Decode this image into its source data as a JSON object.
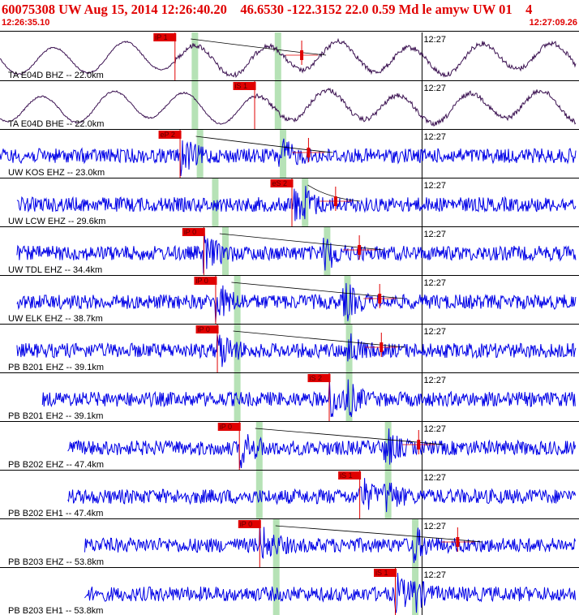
{
  "header": {
    "title": "60075308 UW Aug 15, 2014 12:26:40.20    46.6530 -122.3152 22.0 0.59 Md le amyw UW 01    4",
    "time_start": "12:26:35.10",
    "time_end": "12:27:09.26"
  },
  "colors": {
    "header_red": "#e00000",
    "trace_black": "#3a1050",
    "trace_blue": "#0000e6",
    "pick_red": "#e00000",
    "window_green": "#b6e2b6",
    "tick": "#000000"
  },
  "chart_data": {
    "type": "line",
    "title": "60075308 UW Aug 15, 2014 12:26:40.20",
    "x_range": [
      "12:26:35.10",
      "12:27:09.26"
    ],
    "minute_label": "12:27",
    "minute_mark_time": "12:27:00.00",
    "channels": [
      {
        "label": "TA E04D BHZ -- 22.0km",
        "pick": "iP 1",
        "pick_time": 10.3,
        "green_times": [
          11.5,
          16.4
        ],
        "amp_time": 17.8,
        "color": "dark",
        "start": 0.0,
        "end": 35.0
      },
      {
        "label": "TA E04D BHE -- 22.0km",
        "pick": "iS 1",
        "pick_time": 15.0,
        "green_times": [
          11.5,
          16.4
        ],
        "amp_time": null,
        "color": "dark",
        "start": 0.0,
        "end": 35.0
      },
      {
        "label": "UW KOS EHZ -- 23.0km",
        "pick": "eP 2",
        "pick_time": 10.6,
        "green_times": [
          11.8,
          16.7
        ],
        "amp_time": 18.2,
        "color": "blue",
        "start": 0.0,
        "end": 35.0
      },
      {
        "label": "UW LCW EHZ -- 29.6km",
        "pick": "eS 2",
        "pick_time": 17.2,
        "green_times": [
          12.7,
          18.0
        ],
        "amp_time": 19.8,
        "color": "blue",
        "start": 1.0,
        "end": 36.0
      },
      {
        "label": "UW TDL EHZ -- 34.4km",
        "pick": "iP 0",
        "pick_time": 12.0,
        "green_times": [
          13.3,
          19.3
        ],
        "amp_time": 21.2,
        "color": "blue",
        "start": 1.0,
        "end": 37.0
      },
      {
        "label": "UW ELK EHZ -- 38.7km",
        "pick": "iP 0",
        "pick_time": 12.7,
        "green_times": [
          14.0,
          20.5
        ],
        "amp_time": 22.4,
        "color": "blue",
        "start": 1.0,
        "end": 37.5
      },
      {
        "label": "PB B201 EHZ -- 39.1km",
        "pick": "iP 0",
        "pick_time": 12.8,
        "green_times": [
          14.0,
          20.6
        ],
        "amp_time": 22.5,
        "color": "blue",
        "start": 1.0,
        "end": 37.5
      },
      {
        "label": "PB B201 EH2 -- 39.1km",
        "pick": "iS 2",
        "pick_time": 19.4,
        "green_times": [
          14.0,
          20.6
        ],
        "amp_time": null,
        "color": "blue",
        "start": 2.5,
        "end": 37.5
      },
      {
        "label": "PB B202 EHZ -- 47.4km",
        "pick": "iP 0",
        "pick_time": 14.1,
        "green_times": [
          15.3,
          22.9
        ],
        "amp_time": 24.7,
        "color": "blue",
        "start": 4.0,
        "end": 38.5
      },
      {
        "label": "PB B202 EH1 -- 47.4km",
        "pick": "iS 1",
        "pick_time": 21.2,
        "green_times": [
          15.3,
          22.9
        ],
        "amp_time": null,
        "color": "blue",
        "start": 4.0,
        "end": 38.5
      },
      {
        "label": "PB B203 EHZ -- 53.8km",
        "pick": "iP 0",
        "pick_time": 15.3,
        "green_times": [
          16.3,
          24.5
        ],
        "amp_time": 27.0,
        "color": "blue",
        "start": 5.0,
        "end": 38.8
      },
      {
        "label": "PB B203 EH1 -- 53.8km",
        "pick": "iS 1",
        "pick_time": 23.3,
        "green_times": [
          16.3,
          24.5
        ],
        "amp_time": null,
        "color": "blue",
        "start": 5.0,
        "end": 38.8
      }
    ]
  }
}
